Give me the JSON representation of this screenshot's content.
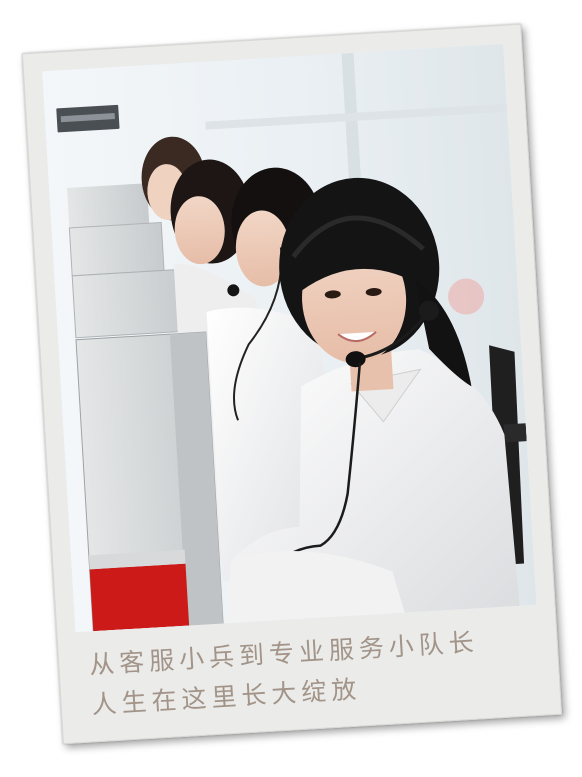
{
  "photo": {
    "subject": "call center agents wearing headsets",
    "sign_text": "",
    "colors": {
      "background_window": "#eef3f6",
      "shirt": "#f6f6f6",
      "hair": "#141414",
      "cubicle_partition": "#cfd2d3",
      "cubicle_frame": "#a9adaf",
      "partition_red": "#cc1a18",
      "chair": "#1f1f1f"
    }
  },
  "caption": {
    "line1": "从客服小兵到专业服务小队长",
    "line2": "人生在这里长大绽放",
    "color": "#a29488"
  },
  "frame": {
    "style": "polaroid",
    "color": "#ebebea"
  }
}
